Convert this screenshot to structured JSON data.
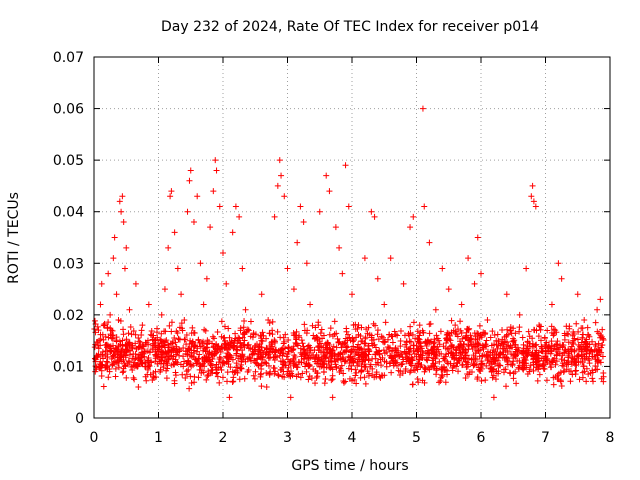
{
  "chart_data": {
    "type": "scatter",
    "title": "Day 232 of 2024, Rate Of TEC Index for receiver p014",
    "xlabel": "GPS time / hours",
    "ylabel": "ROTI / TECUs",
    "xlim": [
      0,
      8
    ],
    "ylim": [
      0,
      0.07
    ],
    "xticks": [
      0,
      1,
      2,
      3,
      4,
      5,
      6,
      7,
      8
    ],
    "xtick_labels": [
      "0",
      "1",
      "2",
      "3",
      "4",
      "5",
      "6",
      "7",
      "8"
    ],
    "yticks": [
      0,
      0.01,
      0.02,
      0.03,
      0.04,
      0.05,
      0.06,
      0.07
    ],
    "ytick_labels": [
      "0",
      "0.01",
      "0.02",
      "0.03",
      "0.04",
      "0.05",
      "0.06",
      "0.07"
    ],
    "grid": true,
    "marker": "+",
    "series": [
      {
        "name": "ROTI",
        "color": "#ff0000",
        "points": [
          [
            0.02,
            0.009
          ],
          [
            0.05,
            0.012
          ],
          [
            0.08,
            0.015
          ],
          [
            0.1,
            0.022
          ],
          [
            0.12,
            0.026
          ],
          [
            0.15,
            0.018
          ],
          [
            0.18,
            0.013
          ],
          [
            0.2,
            0.01
          ],
          [
            0.22,
            0.028
          ],
          [
            0.25,
            0.02
          ],
          [
            0.28,
            0.016
          ],
          [
            0.3,
            0.031
          ],
          [
            0.32,
            0.035
          ],
          [
            0.35,
            0.024
          ],
          [
            0.38,
            0.019
          ],
          [
            0.4,
            0.042
          ],
          [
            0.42,
            0.04
          ],
          [
            0.44,
            0.043
          ],
          [
            0.46,
            0.038
          ],
          [
            0.48,
            0.029
          ],
          [
            0.5,
            0.033
          ],
          [
            0.55,
            0.021
          ],
          [
            0.6,
            0.014
          ],
          [
            0.65,
            0.026
          ],
          [
            0.7,
            0.012
          ],
          [
            0.75,
            0.018
          ],
          [
            0.8,
            0.008
          ],
          [
            0.85,
            0.022
          ],
          [
            0.9,
            0.016
          ],
          [
            0.95,
            0.011
          ],
          [
            1.0,
            0.014
          ],
          [
            1.05,
            0.02
          ],
          [
            1.1,
            0.025
          ],
          [
            1.15,
            0.033
          ],
          [
            1.18,
            0.043
          ],
          [
            1.2,
            0.044
          ],
          [
            1.25,
            0.036
          ],
          [
            1.3,
            0.029
          ],
          [
            1.35,
            0.024
          ],
          [
            1.4,
            0.019
          ],
          [
            1.45,
            0.04
          ],
          [
            1.48,
            0.046
          ],
          [
            1.5,
            0.048
          ],
          [
            1.55,
            0.038
          ],
          [
            1.6,
            0.043
          ],
          [
            1.65,
            0.03
          ],
          [
            1.7,
            0.022
          ],
          [
            1.75,
            0.027
          ],
          [
            1.8,
            0.037
          ],
          [
            1.85,
            0.044
          ],
          [
            1.88,
            0.05
          ],
          [
            1.9,
            0.048
          ],
          [
            1.95,
            0.041
          ],
          [
            2.0,
            0.032
          ],
          [
            2.05,
            0.026
          ],
          [
            2.1,
            0.004
          ],
          [
            2.15,
            0.036
          ],
          [
            2.2,
            0.041
          ],
          [
            2.25,
            0.039
          ],
          [
            2.3,
            0.029
          ],
          [
            2.35,
            0.021
          ],
          [
            2.4,
            0.017
          ],
          [
            2.5,
            0.014
          ],
          [
            2.6,
            0.024
          ],
          [
            2.7,
            0.019
          ],
          [
            2.8,
            0.039
          ],
          [
            2.85,
            0.045
          ],
          [
            2.88,
            0.05
          ],
          [
            2.9,
            0.047
          ],
          [
            2.95,
            0.043
          ],
          [
            3.0,
            0.029
          ],
          [
            3.05,
            0.004
          ],
          [
            3.1,
            0.025
          ],
          [
            3.15,
            0.034
          ],
          [
            3.2,
            0.041
          ],
          [
            3.25,
            0.038
          ],
          [
            3.3,
            0.03
          ],
          [
            3.35,
            0.022
          ],
          [
            3.4,
            0.016
          ],
          [
            3.5,
            0.04
          ],
          [
            3.6,
            0.047
          ],
          [
            3.65,
            0.044
          ],
          [
            3.7,
            0.004
          ],
          [
            3.75,
            0.037
          ],
          [
            3.8,
            0.033
          ],
          [
            3.85,
            0.028
          ],
          [
            3.9,
            0.049
          ],
          [
            3.95,
            0.041
          ],
          [
            4.0,
            0.024
          ],
          [
            4.1,
            0.018
          ],
          [
            4.2,
            0.031
          ],
          [
            4.3,
            0.04
          ],
          [
            4.35,
            0.039
          ],
          [
            4.4,
            0.027
          ],
          [
            4.5,
            0.022
          ],
          [
            4.6,
            0.031
          ],
          [
            4.7,
            0.016
          ],
          [
            4.8,
            0.026
          ],
          [
            4.9,
            0.037
          ],
          [
            4.95,
            0.039
          ],
          [
            5.0,
            0.014
          ],
          [
            5.05,
            0.018
          ],
          [
            5.1,
            0.06
          ],
          [
            5.12,
            0.041
          ],
          [
            5.2,
            0.034
          ],
          [
            5.3,
            0.021
          ],
          [
            5.4,
            0.029
          ],
          [
            5.5,
            0.025
          ],
          [
            5.6,
            0.018
          ],
          [
            5.7,
            0.022
          ],
          [
            5.8,
            0.031
          ],
          [
            5.9,
            0.026
          ],
          [
            5.95,
            0.035
          ],
          [
            6.0,
            0.028
          ],
          [
            6.1,
            0.019
          ],
          [
            6.2,
            0.004
          ],
          [
            6.3,
            0.014
          ],
          [
            6.4,
            0.024
          ],
          [
            6.5,
            0.011
          ],
          [
            6.6,
            0.02
          ],
          [
            6.7,
            0.029
          ],
          [
            6.78,
            0.043
          ],
          [
            6.8,
            0.045
          ],
          [
            6.82,
            0.042
          ],
          [
            6.85,
            0.041
          ],
          [
            6.9,
            0.018
          ],
          [
            7.0,
            0.012
          ],
          [
            7.1,
            0.022
          ],
          [
            7.2,
            0.03
          ],
          [
            7.25,
            0.027
          ],
          [
            7.3,
            0.016
          ],
          [
            7.4,
            0.011
          ],
          [
            7.5,
            0.024
          ],
          [
            7.6,
            0.019
          ],
          [
            7.7,
            0.013
          ],
          [
            7.8,
            0.021
          ],
          [
            7.85,
            0.023
          ],
          [
            7.9,
            0.008
          ]
        ],
        "noise_band": {
          "description": "dense cluster of points between these bounds over the whole 0–7.9 h range",
          "x_start": 0,
          "x_end": 7.9,
          "y_low": 0.005,
          "y_high": 0.02,
          "count": 2200
        }
      }
    ]
  }
}
